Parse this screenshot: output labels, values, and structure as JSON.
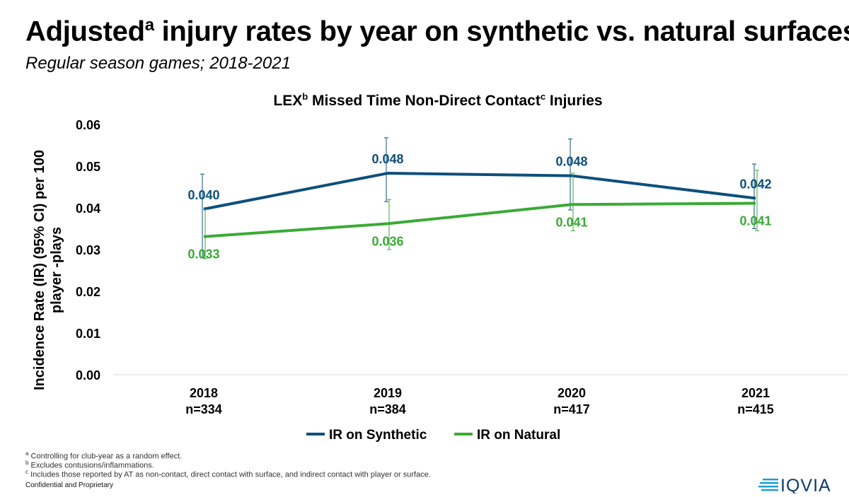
{
  "header": {
    "title_main": "Adjusted",
    "title_sup": "a",
    "title_rest": " injury rates by year on synthetic vs. natural surfaces",
    "subtitle": "Regular season games; 2018-2021"
  },
  "chart_data": {
    "type": "line",
    "title_parts": [
      "LEX",
      "b",
      " Missed Time Non-Direct Contact",
      "c",
      " Injuries"
    ],
    "ylabel_lines": [
      "Incidence Rate (IR) (95% CI) per 100",
      "player -plays"
    ],
    "xlabel": "",
    "ylim": [
      0,
      0.06
    ],
    "yticks": [
      "0.00",
      "0.01",
      "0.02",
      "0.03",
      "0.04",
      "0.05",
      "0.06"
    ],
    "categories": [
      {
        "year": "2018",
        "n": "n=334"
      },
      {
        "year": "2019",
        "n": "n=384"
      },
      {
        "year": "2020",
        "n": "n=417"
      },
      {
        "year": "2021",
        "n": "n=415"
      }
    ],
    "series": [
      {
        "name": "IR on Synthetic",
        "color": "#0d4f7c",
        "values": [
          0.0397,
          0.0483,
          0.0477,
          0.0423
        ],
        "labels": [
          "0.040",
          "0.048",
          "0.048",
          "0.042"
        ],
        "ci_low": [
          0.028,
          0.0415,
          0.0395,
          0.035
        ],
        "ci_high": [
          0.0481,
          0.0568,
          0.0565,
          0.0505
        ]
      },
      {
        "name": "IR on Natural",
        "color": "#3aaa35",
        "values": [
          0.0331,
          0.0362,
          0.0408,
          0.0411
        ],
        "labels": [
          "0.033",
          "0.036",
          "0.041",
          "0.041"
        ],
        "ci_low": [
          0.0278,
          0.03,
          0.0345,
          0.0345
        ],
        "ci_high": [
          0.0396,
          0.042,
          0.0483,
          0.049
        ]
      }
    ],
    "grid": false,
    "legend_position": "bottom"
  },
  "footnotes": [
    {
      "mark": "a",
      "text": "Controlling for club-year as a random effect."
    },
    {
      "mark": "b",
      "text": "Excludes contusions/inflammations."
    },
    {
      "mark": "c",
      "text": "Includes those reported by AT as non-contact, direct contact with surface, and indirect contact with player or surface."
    }
  ],
  "confidential": "Confidential and Proprietary",
  "logo_text": "IQVIA",
  "colors": {
    "brand_blue": "#0d4f7c",
    "brand_green": "#3aaa35",
    "logo_teal": "#1a9ad6"
  }
}
